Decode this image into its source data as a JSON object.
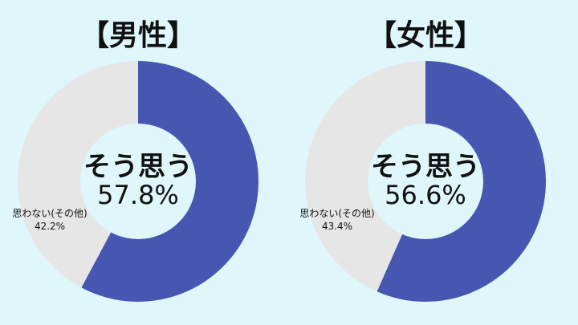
{
  "colors": {
    "background": "#dff6fb",
    "yes": "#4757b1",
    "no": "#e6e6e6",
    "hole": "#dff6fb"
  },
  "chart_data": [
    {
      "type": "pie",
      "title": "【男性】",
      "categories": [
        "そう思う",
        "思わない(その他)"
      ],
      "values": [
        57.8,
        42.2
      ],
      "center_label": "そう思う",
      "center_value": "57.8%",
      "side_label": "思わない(その他)",
      "side_value": "42.2%"
    },
    {
      "type": "pie",
      "title": "【女性】",
      "categories": [
        "そう思う",
        "思わない(その他)"
      ],
      "values": [
        56.6,
        43.4
      ],
      "center_label": "そう思う",
      "center_value": "56.6%",
      "side_label": "思わない(その他)",
      "side_value": "43.4%"
    }
  ]
}
